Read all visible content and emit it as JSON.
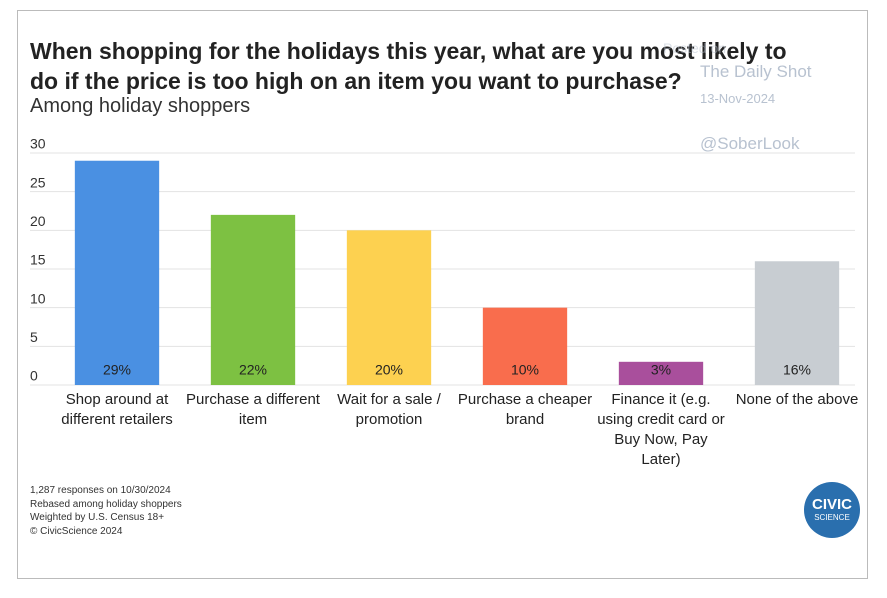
{
  "chart_data": {
    "type": "bar",
    "title": "When shopping for the holidays this year, what are you most likely to\ndo if the price is too high on an item you want to purchase?",
    "subtitle": "Among holiday shoppers",
    "categories": [
      "Shop around at\ndifferent retailers",
      "Purchase a\ndifferent item",
      "Wait for a sale /\npromotion",
      "Purchase a\ncheaper brand",
      "Finance it (e.g.\nusing credit card\nor Buy Now, Pay\nLater)",
      "None of the\nabove"
    ],
    "values": [
      29,
      22,
      20,
      10,
      3,
      16
    ],
    "value_labels": [
      "29%",
      "22%",
      "20%",
      "10%",
      "3%",
      "16%"
    ],
    "colors": [
      "#4a90e2",
      "#7dc142",
      "#fdd150",
      "#f96d4d",
      "#a94f9c",
      "#c8cdd2"
    ],
    "ylim": [
      0,
      30
    ],
    "yticks": [
      0,
      5,
      10,
      15,
      20,
      25,
      30
    ],
    "grid": true,
    "notes": [
      "1,287 responses on 10/30/2024",
      "Rebased among holiday shoppers",
      "Weighted by U.S. Census 18+",
      "© CivicScience 2024"
    ],
    "watermark": [
      "Posted on",
      "The Daily Shot",
      "13-Nov-2024",
      "@SoberLook"
    ],
    "logo": [
      "CIVIC",
      "SCIENCE"
    ]
  }
}
